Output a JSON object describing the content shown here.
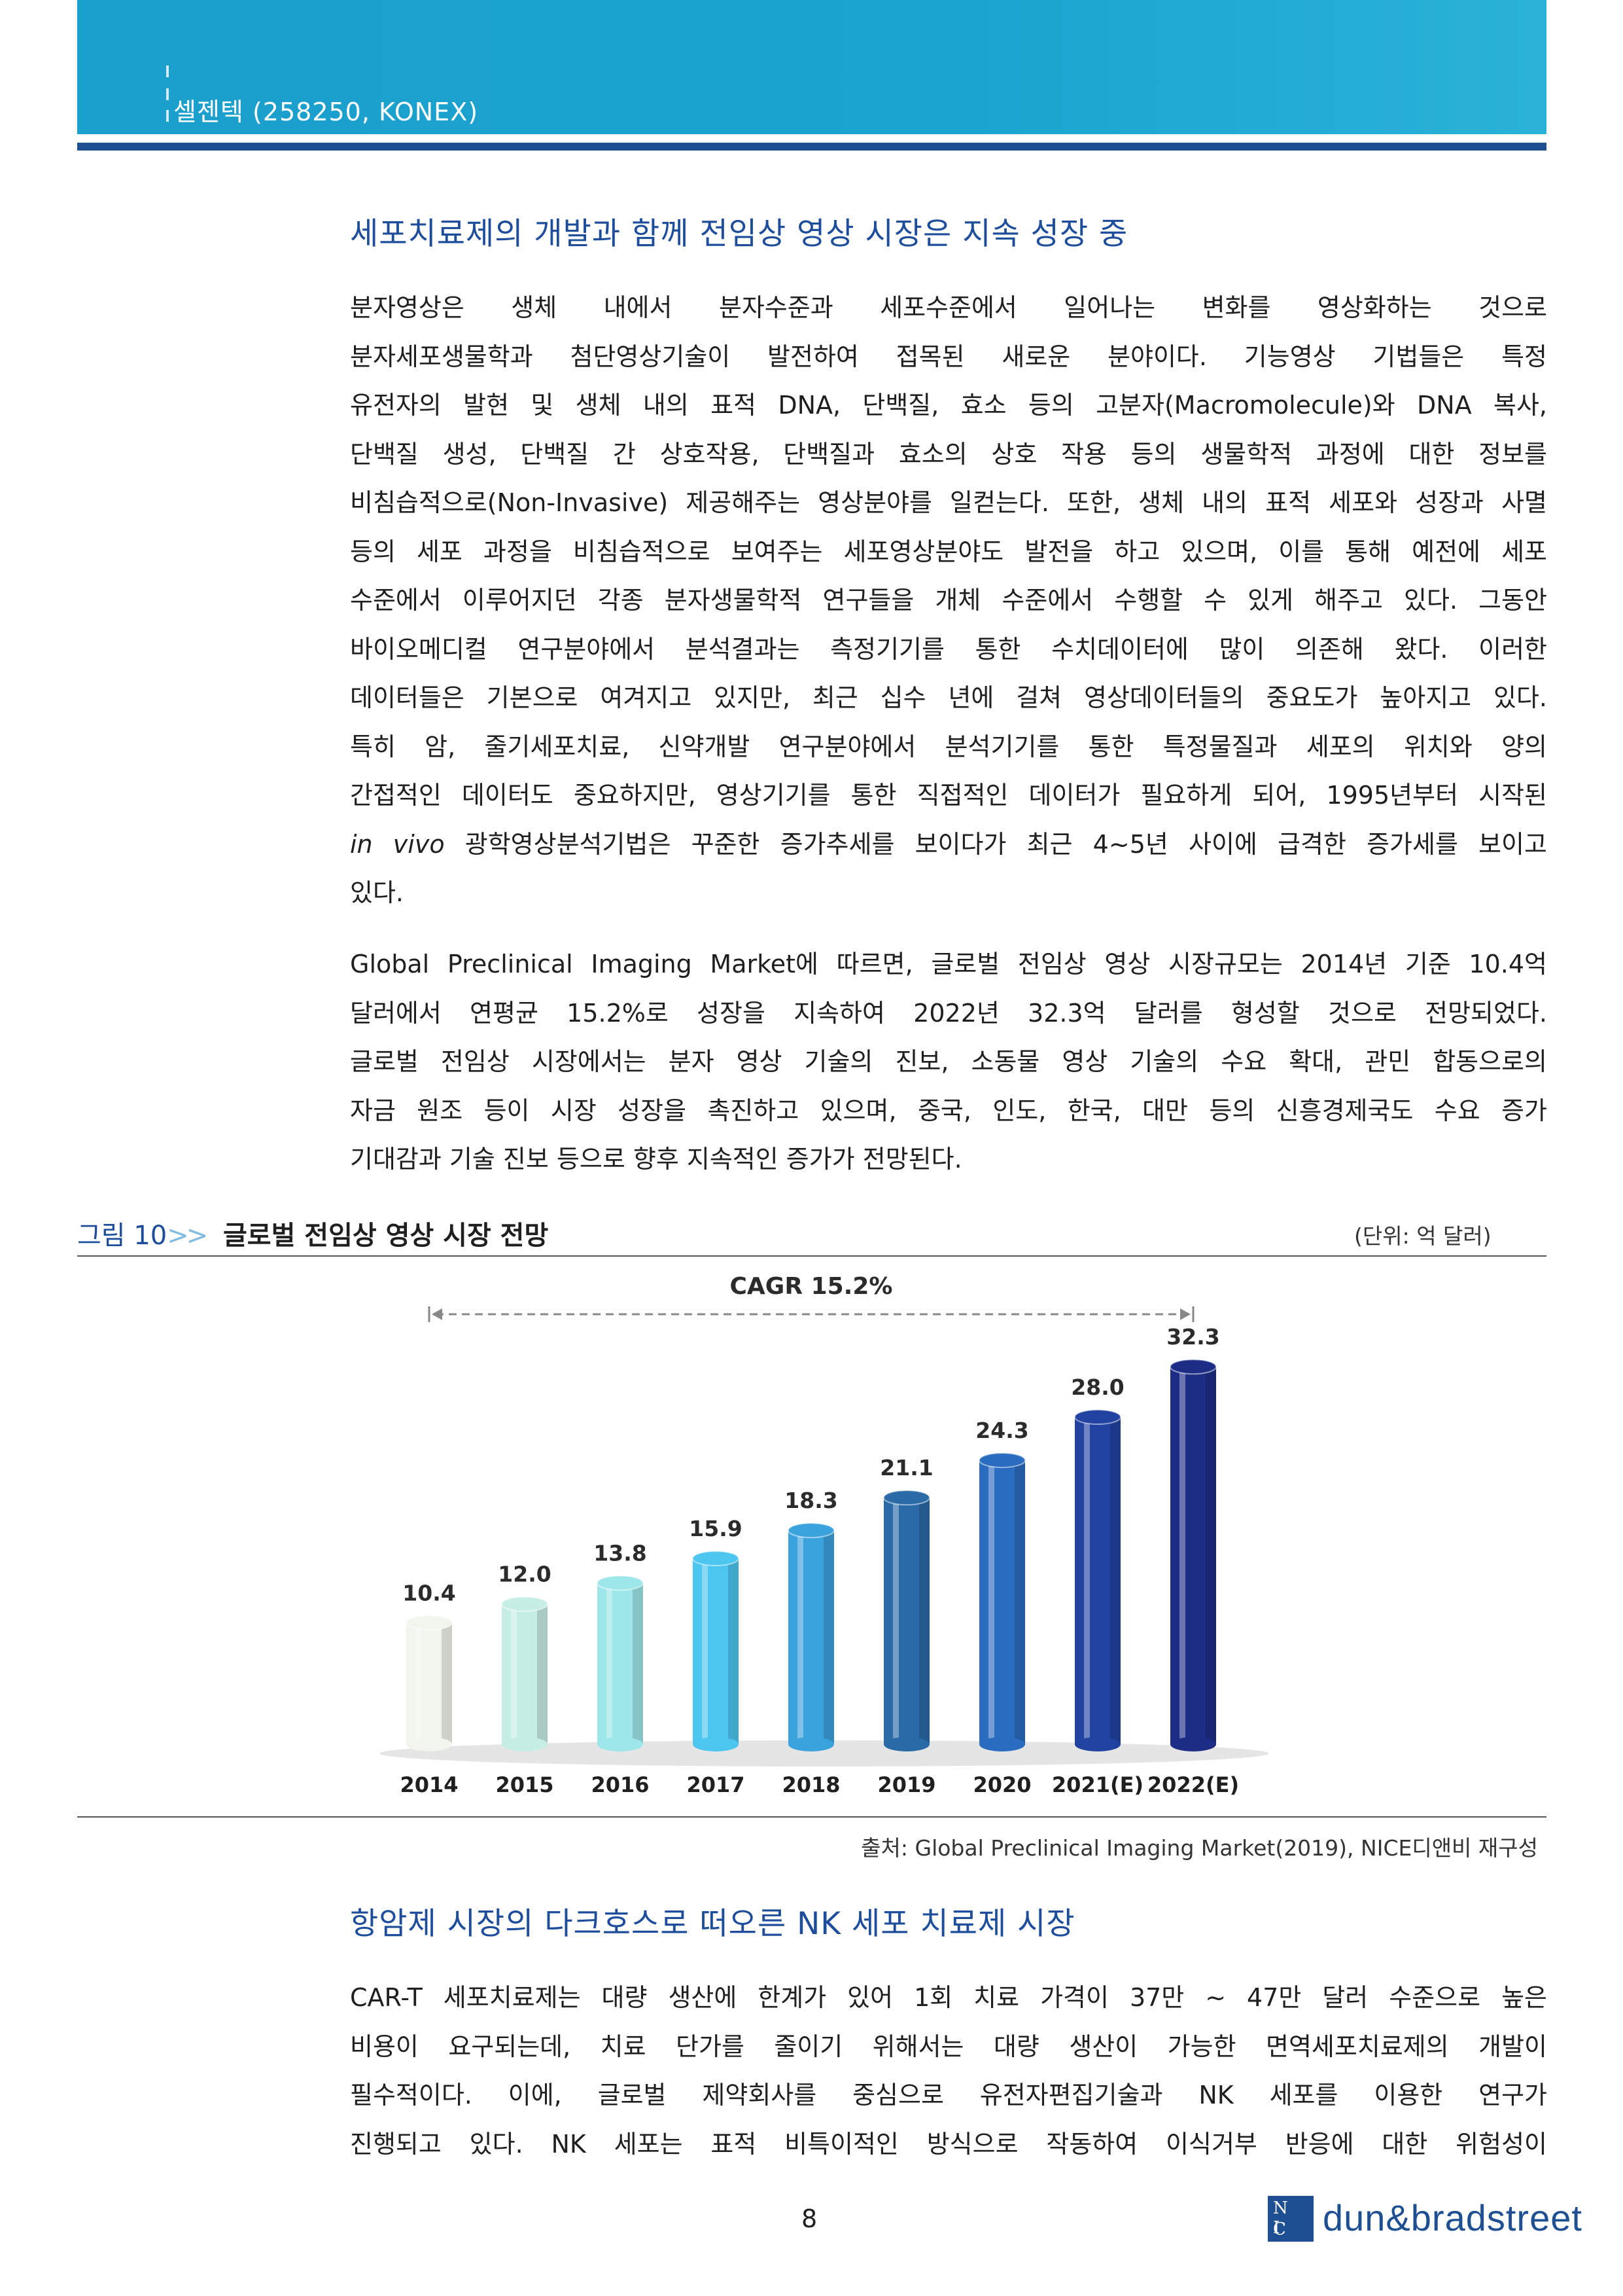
{
  "header": {
    "title": "셀젠텍 (258250, KONEX)"
  },
  "section1": {
    "heading": "세포치료제의 개발과 함께 전임상 영상 시장은 지속 성장 중",
    "para1_lines": [
      "분자영상은 생체 내에서 분자수준과 세포수준에서 일어나는 변화를 영상화하는 것으로",
      "분자세포생물학과 첨단영상기술이 발전하여 접목된 새로운 분야이다. 기능영상 기법들은 특정",
      "유전자의 발현 및 생체 내의 표적 DNA, 단백질, 효소 등의 고분자(Macromolecule)와 DNA 복사,",
      "단백질 생성, 단백질 간 상호작용, 단백질과 효소의 상호 작용 등의 생물학적 과정에 대한 정보를",
      "비침습적으로(Non-Invasive) 제공해주는 영상분야를 일컫는다. 또한, 생체 내의 표적 세포와 성장과 사멸",
      "등의 세포 과정을 비침습적으로 보여주는 세포영상분야도 발전을 하고 있으며, 이를 통해 예전에 세포",
      "수준에서 이루어지던 각종 분자생물학적 연구들을 개체 수준에서 수행할 수 있게 해주고 있다. 그동안",
      "바이오메디컬 연구분야에서 분석결과는 측정기기를 통한 수치데이터에 많이 의존해 왔다. 이러한",
      "데이터들은 기본으로 여겨지고 있지만, 최근 십수 년에 걸쳐 영상데이터들의 중요도가 높아지고 있다.",
      "특히 암, 줄기세포치료, 신약개발 연구분야에서 분석기기를 통한 특정물질과 세포의 위치와 양의",
      "간접적인 데이터도 중요하지만, 영상기기를 통한 직접적인 데이터가 필요하게 되어, 1995년부터 시작된"
    ],
    "para1_italic": "in vivo",
    "para1_line12_rest": " 광학영상분석기법은 꾸준한 증가추세를 보이다가 최근 4~5년 사이에 급격한 증가세를 보이고",
    "para1_last": "있다.",
    "para2_lines": [
      "Global Preclinical Imaging Market에 따르면, 글로벌 전임상 영상 시장규모는 2014년 기준 10.4억",
      "달러에서 연평균 15.2%로 성장을 지속하여 2022년 32.3억 달러를 형성할 것으로 전망되었다.",
      "글로벌 전임상 시장에서는 분자 영상 기술의 진보, 소동물 영상 기술의 수요 확대, 관민 합동으로의",
      "자금 원조 등이 시장 성장을 촉진하고 있으며, 중국, 인도, 한국, 대만 등의 신흥경제국도 수요 증가",
      "기대감과 기술 진보 등으로 향후 지속적인 증가가 전망된다."
    ]
  },
  "figure": {
    "label": "그림 10",
    "arrow": ">>",
    "title": "글로벌 전임상 영상 시장 전망",
    "unit": "(단위: 억 달러)",
    "source": "출처: Global Preclinical Imaging Market(2019), NICE디앤비 재구성"
  },
  "chart_data": {
    "type": "bar",
    "title": "",
    "annotation": "CAGR 15.2%",
    "categories": [
      "2014",
      "2015",
      "2016",
      "2017",
      "2018",
      "2019",
      "2020",
      "2021(E)",
      "2022(E)"
    ],
    "values": [
      10.4,
      12.0,
      13.8,
      15.9,
      18.3,
      21.1,
      24.3,
      28.0,
      32.3
    ],
    "value_labels": [
      "10.4",
      "12.0",
      "13.8",
      "15.9",
      "18.3",
      "21.1",
      "24.3",
      "28.0",
      "32.3"
    ],
    "colors": [
      "#f2f5ee",
      "#c6eee4",
      "#9de6ea",
      "#4cc6ee",
      "#3aa2dd",
      "#2a6aa6",
      "#2a6cc0",
      "#2242a2",
      "#1d2d86"
    ],
    "ylim": [
      0,
      35
    ],
    "grid": false,
    "legend": "none",
    "xlabel": "",
    "ylabel": ""
  },
  "section2": {
    "heading": "항암제 시장의 다크호스로 떠오른 NK 세포 치료제 시장",
    "para_lines": [
      "CAR-T 세포치료제는 대량 생산에 한계가 있어 1회 치료 가격이 37만 ~ 47만 달러 수준으로 높은",
      "비용이 요구되는데, 치료 단가를 줄이기 위해서는 대량 생산이 가능한 면역세포치료제의 개발이",
      "필수적이다. 이에, 글로벌 제약회사를 중심으로 유전자편집기술과 NK 세포를 이용한 연구가",
      "진행되고 있다. NK 세포는 표적 비특이적인 방식으로 작동하여 이식거부 반응에 대한 위험성이"
    ]
  },
  "footer": {
    "page_number": "8",
    "logo_box_top": "N I",
    "logo_box_bottom": "C E",
    "logo_text": "dun&bradstreet"
  }
}
